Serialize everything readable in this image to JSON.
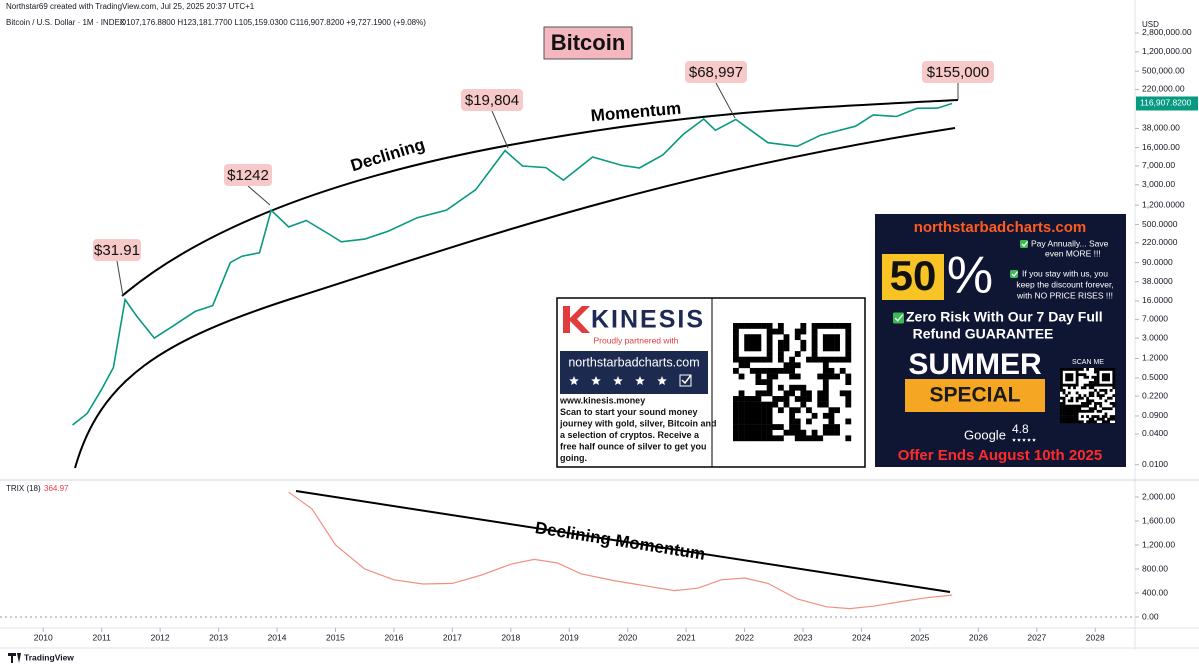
{
  "header": {
    "author_line": "Northstar69 created with TradingView.com, Jul 25, 2025 20:37 UTC+1",
    "symbol": "Bitcoin / U.S. Dollar · 1M · INDEX",
    "ohlc": "O107,176.8800 H123,181.7700 L105,159.0300 C116,907.8200 +9,727.1900 (+9.08%)",
    "currency": "USD"
  },
  "footer": {
    "brand": "TradingView"
  },
  "chart_data": [
    {
      "type": "line",
      "title": "Bitcoin",
      "log_scale": true,
      "annotations": [
        "$31.91",
        "$1242",
        "$19,804",
        "$68,997",
        "$155,000",
        "Declining",
        "Momentum"
      ],
      "xlim": [
        2009.26,
        2028.68
      ],
      "ylim": [
        0.0055,
        5500000
      ],
      "yticks": [
        {
          "value": 2800000,
          "label": "2,800,000.00"
        },
        {
          "value": 1200000,
          "label": "1,200,000.00"
        },
        {
          "value": 500000,
          "label": "500,000.00"
        },
        {
          "value": 220000,
          "label": "220,000.00"
        },
        {
          "value": 38000,
          "label": "38,000.00"
        },
        {
          "value": 16000,
          "label": "16,000.00"
        },
        {
          "value": 7000,
          "label": "7,000.00"
        },
        {
          "value": 3000,
          "label": "3,000.00"
        },
        {
          "value": 1200,
          "label": "1,200.0000"
        },
        {
          "value": 500,
          "label": "500.0000"
        },
        {
          "value": 220,
          "label": "220.0000"
        },
        {
          "value": 90,
          "label": "90.0000"
        },
        {
          "value": 38,
          "label": "38.0000"
        },
        {
          "value": 16,
          "label": "16.0000"
        },
        {
          "value": 7,
          "label": "7.0000"
        },
        {
          "value": 3,
          "label": "3.0000"
        },
        {
          "value": 1.2,
          "label": "1.2000"
        },
        {
          "value": 0.5,
          "label": "0.5000"
        },
        {
          "value": 0.22,
          "label": "0.2200"
        },
        {
          "value": 0.09,
          "label": "0.0900"
        },
        {
          "value": 0.04,
          "label": "0.0400"
        },
        {
          "value": 0.01,
          "label": "0.0100"
        }
      ],
      "last_price": {
        "value": 116907.82,
        "label": "116,907.8200"
      },
      "series": [
        {
          "name": "Bitcoin / U.S. Dollar",
          "color": "#089981",
          "x": [
            2010.5,
            2010.75,
            2011.0,
            2011.2,
            2011.4,
            2011.6,
            2011.9,
            2012.2,
            2012.6,
            2012.9,
            2013.2,
            2013.4,
            2013.7,
            2013.9,
            2014.2,
            2014.5,
            2014.9,
            2015.1,
            2015.5,
            2015.9,
            2016.4,
            2016.9,
            2017.4,
            2017.9,
            2018.2,
            2018.6,
            2018.9,
            2019.4,
            2019.9,
            2020.2,
            2020.6,
            2020.95,
            2021.3,
            2021.5,
            2021.85,
            2022.4,
            2022.9,
            2023.3,
            2023.9,
            2024.2,
            2024.6,
            2024.95,
            2025.3,
            2025.55
          ],
          "values": [
            0.06,
            0.1,
            0.3,
            0.8,
            17,
            8,
            3,
            5,
            10,
            13,
            90,
            120,
            140,
            950,
            450,
            600,
            320,
            230,
            260,
            370,
            680,
            960,
            2400,
            14000,
            7000,
            6500,
            3700,
            10500,
            7200,
            6400,
            11500,
            29000,
            58000,
            35000,
            57000,
            20000,
            17000,
            28000,
            42000,
            70000,
            65000,
            94000,
            95000,
            116907.82
          ]
        }
      ]
    },
    {
      "type": "line",
      "title": "TRIX (18)",
      "last_value": 364.97,
      "annotations": [
        "Declining Momentum"
      ],
      "xlim": [
        2009.26,
        2028.68
      ],
      "ylim": [
        -250,
        2250
      ],
      "xticks": [
        2010,
        2011,
        2012,
        2013,
        2014,
        2015,
        2016,
        2017,
        2018,
        2019,
        2020,
        2021,
        2022,
        2023,
        2024,
        2025,
        2026,
        2027,
        2028
      ],
      "yticks": [
        {
          "value": 0,
          "label": "0.00"
        },
        {
          "value": 400,
          "label": "400.00"
        },
        {
          "value": 800,
          "label": "800.00"
        },
        {
          "value": 1200,
          "label": "1,200.00"
        },
        {
          "value": 1600,
          "label": "1,600.00"
        },
        {
          "value": 2000,
          "label": "2,000.00"
        }
      ],
      "series": [
        {
          "name": "TRIX",
          "color": "#f0907f",
          "x": [
            2014.2,
            2014.6,
            2015.0,
            2015.5,
            2016.0,
            2016.5,
            2017.0,
            2017.5,
            2018.0,
            2018.4,
            2018.8,
            2019.2,
            2019.8,
            2020.3,
            2020.8,
            2021.2,
            2021.6,
            2022.0,
            2022.4,
            2022.9,
            2023.4,
            2023.8,
            2024.2,
            2024.7,
            2025.1,
            2025.55
          ],
          "values": [
            2080,
            1800,
            1200,
            800,
            620,
            550,
            560,
            700,
            880,
            960,
            900,
            720,
            600,
            520,
            440,
            480,
            620,
            650,
            560,
            300,
            170,
            140,
            180,
            260,
            320,
            364.97
          ]
        }
      ]
    }
  ],
  "kinesis_ad": {
    "brand": "KINESIS",
    "tagline": "Proudly partnered with",
    "partner": "northstarbadcharts.com",
    "lines": [
      "www.kinesis.money",
      "Scan to start your sound money",
      "journey with gold, silver, Bitcoin and",
      "a selection of cryptos. Receive a",
      "free half ounce of silver to get you",
      "going."
    ]
  },
  "promo_ad": {
    "site": "northstarbadcharts.com",
    "discount": "50",
    "percent": "%",
    "offer_1": [
      "Pay Annually... Save",
      "even MORE !!!"
    ],
    "offer_2": [
      "If you stay with us, you",
      "keep the discount forever,",
      "with NO PRICE RISES !!!"
    ],
    "guarantee": [
      "Zero Risk With Our 7 Day Full",
      "Refund GUARANTEE"
    ],
    "summer": "SUMMER",
    "special": "SPECIAL",
    "scan": "SCAN ME",
    "google": "Google",
    "rating": "4.8",
    "deadline": "Offer Ends August 10th 2025"
  }
}
